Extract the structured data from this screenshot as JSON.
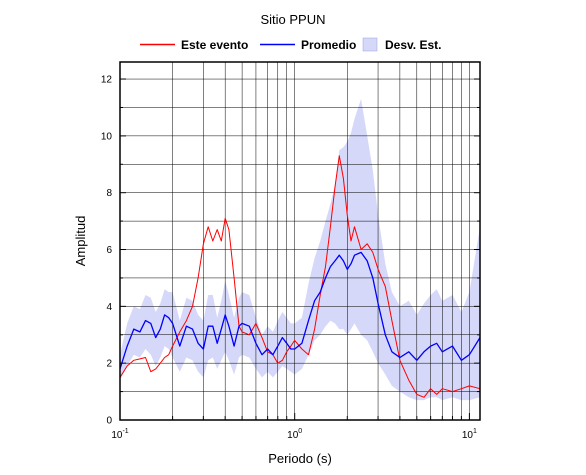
{
  "chart_data": {
    "type": "line",
    "title": "Sitio PPUN",
    "xlabel": "Periodo (s)",
    "ylabel": "Amplitud",
    "x_scale": "log",
    "xlim": [
      0.1,
      11.5
    ],
    "ylim": [
      0,
      12.6
    ],
    "x_ticks": [
      {
        "value": 0.1,
        "base": "10",
        "exp": "-1"
      },
      {
        "value": 1,
        "base": "10",
        "exp": "0"
      },
      {
        "value": 10,
        "base": "10",
        "exp": "1"
      }
    ],
    "y_ticks": [
      {
        "value": 0,
        "label": "0"
      },
      {
        "value": 2,
        "label": "2"
      },
      {
        "value": 4,
        "label": "4"
      },
      {
        "value": 6,
        "label": "6"
      },
      {
        "value": 8,
        "label": "8"
      },
      {
        "value": 10,
        "label": "10"
      },
      {
        "value": 12,
        "label": "12"
      }
    ],
    "grid": true,
    "legend_position": "top-center",
    "legend": {
      "event": "Este evento",
      "mean": "Promedio",
      "std": "Desv. Est."
    },
    "colors": {
      "event": "#ff0000",
      "mean": "#0000ff",
      "std_fill": "#d5d8f8"
    },
    "series": [
      {
        "key": "event",
        "x": [
          0.1,
          0.11,
          0.12,
          0.13,
          0.14,
          0.15,
          0.16,
          0.17,
          0.18,
          0.19,
          0.2,
          0.22,
          0.24,
          0.26,
          0.28,
          0.3,
          0.32,
          0.34,
          0.36,
          0.38,
          0.4,
          0.42,
          0.45,
          0.48,
          0.5,
          0.55,
          0.6,
          0.65,
          0.7,
          0.75,
          0.8,
          0.85,
          0.9,
          0.95,
          1.0,
          1.1,
          1.2,
          1.3,
          1.4,
          1.5,
          1.6,
          1.7,
          1.8,
          1.9,
          2.0,
          2.1,
          2.2,
          2.4,
          2.6,
          2.8,
          3.0,
          3.3,
          3.6,
          4.0,
          4.5,
          5.0,
          5.5,
          6.0,
          6.5,
          7.0,
          8.0,
          9.0,
          10.0,
          11.5
        ],
        "y": [
          1.5,
          1.9,
          2.1,
          2.15,
          2.2,
          1.7,
          1.8,
          2.0,
          2.2,
          2.3,
          2.6,
          3.1,
          3.5,
          4.0,
          5.0,
          6.2,
          6.8,
          6.3,
          6.7,
          6.3,
          7.1,
          6.7,
          5.0,
          3.3,
          3.1,
          3.0,
          3.4,
          2.9,
          2.4,
          2.3,
          2.0,
          2.1,
          2.4,
          2.6,
          2.8,
          2.5,
          2.3,
          3.2,
          4.4,
          5.4,
          6.8,
          8.2,
          9.3,
          8.5,
          7.2,
          6.3,
          6.8,
          6.0,
          6.2,
          5.9,
          5.3,
          4.7,
          3.5,
          2.1,
          1.4,
          0.9,
          0.8,
          1.1,
          0.9,
          1.1,
          1.0,
          1.1,
          1.2,
          1.1
        ]
      },
      {
        "key": "mean",
        "x": [
          0.1,
          0.11,
          0.12,
          0.13,
          0.14,
          0.15,
          0.16,
          0.17,
          0.18,
          0.19,
          0.2,
          0.22,
          0.24,
          0.26,
          0.28,
          0.3,
          0.32,
          0.34,
          0.36,
          0.38,
          0.4,
          0.42,
          0.45,
          0.48,
          0.5,
          0.55,
          0.6,
          0.65,
          0.7,
          0.75,
          0.8,
          0.85,
          0.9,
          0.95,
          1.0,
          1.1,
          1.2,
          1.3,
          1.4,
          1.5,
          1.6,
          1.7,
          1.8,
          1.9,
          2.0,
          2.1,
          2.2,
          2.4,
          2.6,
          2.8,
          3.0,
          3.3,
          3.6,
          4.0,
          4.5,
          5.0,
          5.5,
          6.0,
          6.5,
          7.0,
          8.0,
          9.0,
          10.0,
          11.5
        ],
        "y": [
          1.8,
          2.6,
          3.2,
          3.1,
          3.5,
          3.4,
          2.9,
          3.2,
          3.7,
          3.6,
          3.4,
          2.6,
          3.3,
          3.2,
          2.7,
          2.5,
          3.3,
          3.3,
          2.7,
          3.2,
          3.7,
          3.3,
          2.6,
          3.3,
          3.4,
          3.3,
          2.7,
          2.3,
          2.5,
          2.3,
          2.6,
          2.9,
          2.7,
          2.5,
          2.5,
          2.7,
          3.5,
          4.2,
          4.5,
          5.0,
          5.4,
          5.6,
          5.8,
          5.6,
          5.3,
          5.5,
          5.8,
          5.9,
          5.6,
          5.0,
          4.1,
          3.0,
          2.4,
          2.2,
          2.4,
          2.1,
          2.4,
          2.6,
          2.7,
          2.4,
          2.6,
          2.1,
          2.3,
          2.9
        ]
      }
    ],
    "std_band": {
      "x": [
        0.1,
        0.11,
        0.12,
        0.13,
        0.14,
        0.15,
        0.16,
        0.17,
        0.18,
        0.19,
        0.2,
        0.22,
        0.24,
        0.26,
        0.28,
        0.3,
        0.32,
        0.34,
        0.36,
        0.38,
        0.4,
        0.42,
        0.45,
        0.48,
        0.5,
        0.55,
        0.6,
        0.65,
        0.7,
        0.75,
        0.8,
        0.85,
        0.9,
        0.95,
        1.0,
        1.1,
        1.2,
        1.3,
        1.4,
        1.5,
        1.6,
        1.7,
        1.8,
        1.9,
        2.0,
        2.1,
        2.2,
        2.4,
        2.6,
        2.8,
        3.0,
        3.3,
        3.6,
        4.0,
        4.5,
        5.0,
        5.5,
        6.0,
        6.5,
        7.0,
        8.0,
        9.0,
        10.0,
        11.5
      ],
      "lower": [
        1.4,
        1.9,
        2.3,
        2.2,
        2.5,
        2.3,
        1.9,
        2.2,
        2.6,
        2.5,
        2.2,
        1.7,
        2.2,
        2.1,
        1.7,
        1.5,
        2.1,
        2.2,
        1.8,
        2.1,
        2.4,
        2.1,
        1.6,
        2.2,
        2.3,
        2.2,
        1.8,
        1.5,
        1.7,
        1.5,
        1.7,
        1.9,
        1.8,
        1.7,
        1.6,
        1.8,
        2.3,
        2.8,
        3.0,
        3.3,
        3.5,
        3.4,
        3.2,
        3.2,
        3.0,
        3.2,
        3.4,
        3.0,
        2.8,
        2.4,
        2.0,
        1.6,
        1.2,
        1.0,
        0.8,
        0.7,
        0.7,
        0.8,
        0.8,
        0.7,
        0.8,
        0.7,
        0.7,
        0.8
      ],
      "upper": [
        2.3,
        3.4,
        4.0,
        3.9,
        4.4,
        4.3,
        3.8,
        4.1,
        4.6,
        4.5,
        4.5,
        3.5,
        4.3,
        4.2,
        3.7,
        3.5,
        4.4,
        4.4,
        3.6,
        4.2,
        4.9,
        4.4,
        3.6,
        4.3,
        4.5,
        4.4,
        3.6,
        3.0,
        3.3,
        3.1,
        3.5,
        3.8,
        3.6,
        3.4,
        3.4,
        3.6,
        4.8,
        5.7,
        6.3,
        7.0,
        7.6,
        8.3,
        9.5,
        9.6,
        9.8,
        10.1,
        10.6,
        11.3,
        10.0,
        8.8,
        7.2,
        5.5,
        4.5,
        4.0,
        4.2,
        3.7,
        4.1,
        4.4,
        4.6,
        4.2,
        4.4,
        3.8,
        4.5,
        6.8
      ]
    }
  }
}
